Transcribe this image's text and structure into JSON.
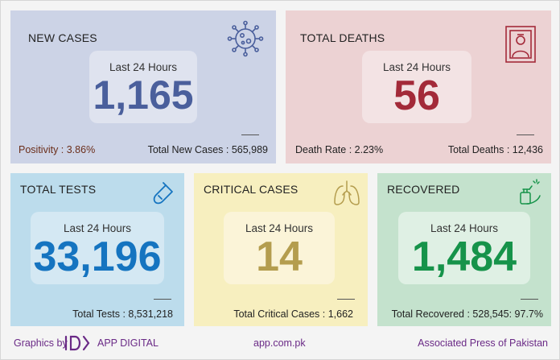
{
  "new_cases": {
    "title": "NEW CASES",
    "period": "Last 24 Hours",
    "value": "1,165",
    "left_stat": "Positivity : 3.86%",
    "right_stat": "Total New Cases : 565,989",
    "icon": "virus-icon",
    "color": "#4a5f9c"
  },
  "total_deaths": {
    "title": "TOTAL DEATHS",
    "period": "Last 24 Hours",
    "value": "56",
    "left_stat": "Death Rate : 2.23%",
    "right_stat": "Total Deaths : 12,436",
    "icon": "portrait-frame-icon",
    "color": "#a32a39"
  },
  "total_tests": {
    "title": "TOTAL TESTS",
    "period": "Last 24 Hours",
    "value": "33,196",
    "stat": "Total Tests : 8,531,218",
    "icon": "test-tube-icon",
    "color": "#1574c0"
  },
  "critical_cases": {
    "title": "CRITICAL CASES",
    "period": "Last 24 Hours",
    "value": "14",
    "stat": "Total Critical Cases : 1,662",
    "icon": "lungs-icon",
    "color": "#b49d4e"
  },
  "recovered": {
    "title": "RECOVERED",
    "period": "Last 24 Hours",
    "value": "1,484",
    "stat": "Total Recovered : 528,545: 97.7%",
    "icon": "hand-sanitizer-icon",
    "color": "#16934a"
  },
  "footer": {
    "graphics_by": "Graphics by",
    "brand": "APP DIGITAL",
    "website": "app.com.pk",
    "org": "Associated Press of Pakistan"
  }
}
